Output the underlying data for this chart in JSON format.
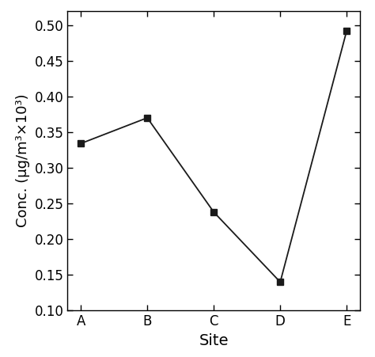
{
  "sites": [
    "A",
    "B",
    "C",
    "D",
    "E"
  ],
  "values": [
    0.334,
    0.37,
    0.238,
    0.14,
    0.492
  ],
  "xlabel": "Site",
  "ylabel": "Conc. (μg/m³×10³)",
  "ylim": [
    0.1,
    0.52
  ],
  "yticks": [
    0.1,
    0.15,
    0.2,
    0.25,
    0.3,
    0.35,
    0.4,
    0.45,
    0.5
  ],
  "line_color": "#1a1a1a",
  "marker": "s",
  "marker_size": 6,
  "marker_color": "#1a1a1a",
  "linewidth": 1.3,
  "background_color": "#ffffff",
  "xlabel_fontsize": 14,
  "ylabel_fontsize": 13,
  "tick_labelsize": 12
}
